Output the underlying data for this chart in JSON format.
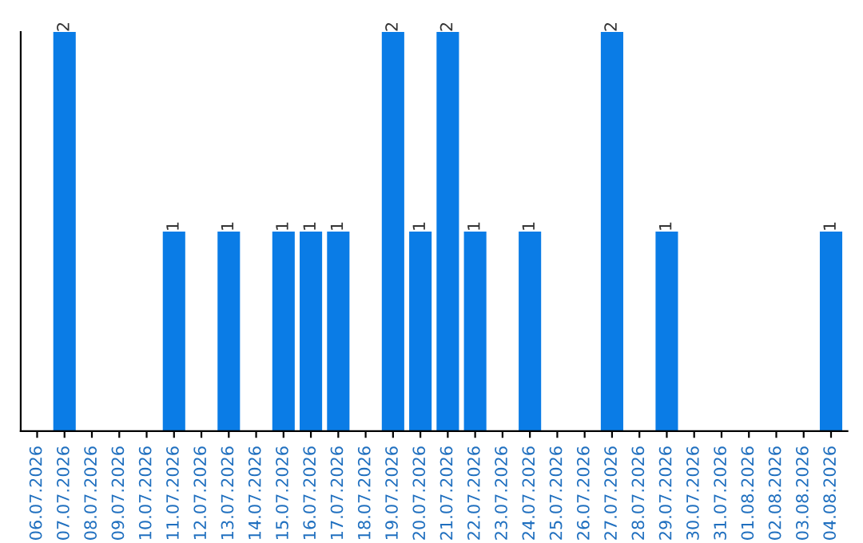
{
  "chart_data": {
    "type": "bar",
    "categories": [
      "06.07.2026",
      "07.07.2026",
      "08.07.2026",
      "09.07.2026",
      "10.07.2026",
      "11.07.2026",
      "12.07.2026",
      "13.07.2026",
      "14.07.2026",
      "15.07.2026",
      "16.07.2026",
      "17.07.2026",
      "18.07.2026",
      "19.07.2026",
      "20.07.2026",
      "21.07.2026",
      "22.07.2026",
      "23.07.2026",
      "24.07.2026",
      "25.07.2026",
      "26.07.2026",
      "27.07.2026",
      "28.07.2026",
      "29.07.2026",
      "30.07.2026",
      "31.07.2026",
      "01.08.2026",
      "02.08.2026",
      "03.08.2026",
      "04.08.2026"
    ],
    "values": [
      0,
      2,
      0,
      0,
      0,
      1,
      0,
      1,
      0,
      1,
      1,
      1,
      0,
      2,
      1,
      2,
      1,
      0,
      1,
      0,
      0,
      2,
      0,
      1,
      0,
      0,
      0,
      0,
      0,
      1
    ],
    "value_labels": [
      null,
      "2",
      null,
      null,
      null,
      "1",
      null,
      "1",
      null,
      "1",
      "1",
      "1",
      null,
      "2",
      "1",
      "2",
      "1",
      null,
      "1",
      null,
      null,
      "2",
      null,
      "1",
      null,
      null,
      null,
      null,
      null,
      "1"
    ],
    "color": "#0a7ce6",
    "ylim": [
      0,
      2
    ],
    "relative": false,
    "tick_labels": "x",
    "grid": false,
    "legend": false
  }
}
